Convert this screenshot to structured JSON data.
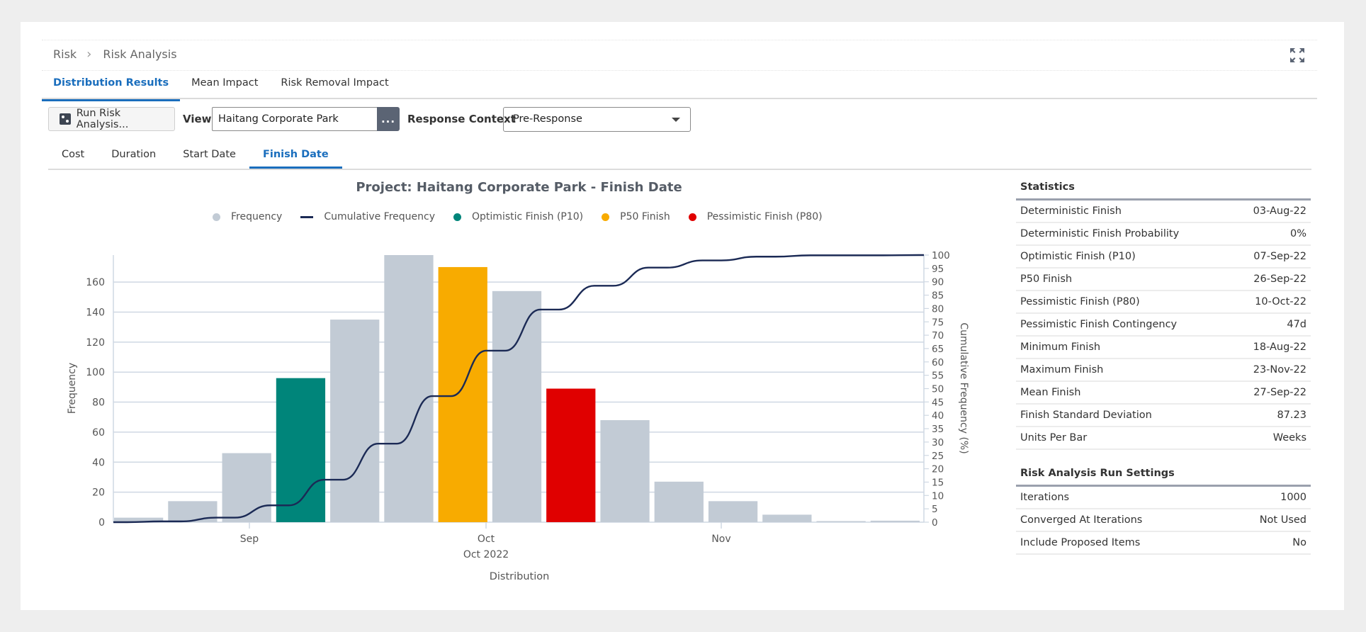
{
  "breadcrumb": [
    "Risk",
    "Risk Analysis"
  ],
  "tabs": [
    {
      "label": "Distribution Results",
      "active": true
    },
    {
      "label": "Mean Impact",
      "active": false
    },
    {
      "label": "Risk Removal Impact",
      "active": false
    }
  ],
  "toolbar": {
    "run_label": "Run Risk Analysis...",
    "view_label": "View",
    "view_value": "Haitang Corporate Park",
    "view_more": "...",
    "response_label": "Response Context",
    "response_value": "Pre-Response"
  },
  "subtabs": [
    {
      "label": "Cost",
      "active": false
    },
    {
      "label": "Duration",
      "active": false
    },
    {
      "label": "Start Date",
      "active": false
    },
    {
      "label": "Finish Date",
      "active": true
    }
  ],
  "colors": {
    "accent": "#1a6ebd",
    "frequency": "#c2cbd5",
    "cumulative": "#1b2a55",
    "p10": "#00857a",
    "p50": "#f8ab00",
    "p80": "#e00000"
  },
  "chart_data": {
    "type": "bar",
    "title": "Project: Haitang Corporate Park - Finish Date",
    "legend": [
      "Frequency",
      "Cumulative Frequency",
      "Optimistic Finish (P10)",
      "P50 Finish",
      "Pessimistic Finish (P80)"
    ],
    "legend_position": "top",
    "xlabel": "Distribution",
    "x_subtitle": "Oct 2022",
    "ylabel": "Frequency",
    "y2label": "Cumulative Frequency (%)",
    "x_ticks": [
      "Sep",
      "Oct",
      "Nov"
    ],
    "y_ticks": [
      0,
      20,
      40,
      60,
      80,
      100,
      120,
      140,
      160
    ],
    "y2_ticks": [
      0,
      5,
      10,
      15,
      20,
      25,
      30,
      35,
      40,
      45,
      50,
      55,
      60,
      65,
      70,
      75,
      80,
      85,
      90,
      95,
      100
    ],
    "ylim": [
      0,
      178
    ],
    "y2lim": [
      0,
      100
    ],
    "grid": true,
    "units_per_bar": "Weeks",
    "series": [
      {
        "name": "Frequency",
        "values": [
          3,
          14,
          46,
          96,
          135,
          178,
          170,
          154,
          89,
          68,
          27,
          14,
          5,
          0,
          1
        ],
        "highlight": [
          "freq",
          "freq",
          "freq",
          "p10",
          "freq",
          "freq",
          "p50",
          "freq",
          "p80",
          "freq",
          "freq",
          "freq",
          "freq",
          "freq",
          "freq"
        ]
      },
      {
        "name": "Cumulative Frequency",
        "values": [
          0.3,
          1.7,
          6.3,
          15.9,
          29.4,
          47.2,
          64.2,
          79.6,
          88.5,
          95.3,
          98.0,
          99.4,
          99.9,
          99.9,
          100
        ]
      }
    ]
  },
  "statistics": {
    "title": "Statistics",
    "rows": [
      {
        "label": "Deterministic Finish",
        "value": "03-Aug-22"
      },
      {
        "label": "Deterministic Finish Probability",
        "value": "0%"
      },
      {
        "label": "Optimistic Finish (P10)",
        "value": "07-Sep-22"
      },
      {
        "label": "P50 Finish",
        "value": "26-Sep-22"
      },
      {
        "label": "Pessimistic Finish (P80)",
        "value": "10-Oct-22"
      },
      {
        "label": "Pessimistic Finish Contingency",
        "value": "47d"
      },
      {
        "label": "Minimum Finish",
        "value": "18-Aug-22"
      },
      {
        "label": "Maximum Finish",
        "value": "23-Nov-22"
      },
      {
        "label": "Mean Finish",
        "value": "27-Sep-22"
      },
      {
        "label": "Finish Standard Deviation",
        "value": "87.23"
      },
      {
        "label": "Units Per Bar",
        "value": "Weeks"
      }
    ]
  },
  "run_settings": {
    "title": "Risk Analysis Run Settings",
    "rows": [
      {
        "label": "Iterations",
        "value": "1000"
      },
      {
        "label": "Converged At Iterations",
        "value": "Not Used"
      },
      {
        "label": "Include Proposed Items",
        "value": "No"
      }
    ]
  }
}
